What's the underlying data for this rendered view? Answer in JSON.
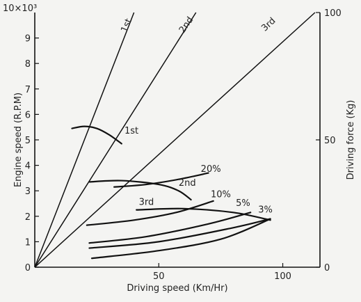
{
  "chart_data": {
    "type": "line",
    "xlabel": "Driving speed (Km/Hr)",
    "ylabel": "Engine speed (R.P.M)",
    "ylabel_right": "Driving force (Kg)",
    "y_multiplier_label": "10×10³",
    "xlim": [
      0,
      115
    ],
    "ylim": [
      0,
      10
    ],
    "ylim_right": [
      0,
      100
    ],
    "x_ticks": [
      {
        "value": 50,
        "label": "50"
      },
      {
        "value": 100,
        "label": "100"
      }
    ],
    "y_ticks": [
      {
        "value": 0,
        "label": "0"
      },
      {
        "value": 1,
        "label": "1"
      },
      {
        "value": 2,
        "label": "2"
      },
      {
        "value": 3,
        "label": "3"
      },
      {
        "value": 4,
        "label": "4"
      },
      {
        "value": 5,
        "label": "5"
      },
      {
        "value": 6,
        "label": "6"
      },
      {
        "value": 7,
        "label": "7"
      },
      {
        "value": 8,
        "label": "8"
      },
      {
        "value": 9,
        "label": "9"
      }
    ],
    "y_right_ticks": [
      {
        "value": 0,
        "label": "0"
      },
      {
        "value": 50,
        "label": "50"
      },
      {
        "value": 100,
        "label": "100"
      }
    ],
    "engine_speed_lines": [
      {
        "name": "1st",
        "points": [
          [
            0,
            0
          ],
          [
            40,
            10
          ]
        ]
      },
      {
        "name": "2nd",
        "points": [
          [
            0,
            0
          ],
          [
            65,
            10
          ]
        ]
      },
      {
        "name": "3rd",
        "points": [
          [
            0,
            0
          ],
          [
            113,
            10
          ]
        ]
      }
    ],
    "driving_force_curves": [
      {
        "name": "1st",
        "axis": "right",
        "points": [
          [
            15,
            54.5
          ],
          [
            20,
            55.3
          ],
          [
            25,
            54.5
          ],
          [
            30,
            52
          ],
          [
            35,
            48.5
          ]
        ]
      },
      {
        "name": "2nd",
        "axis": "right",
        "points": [
          [
            22,
            33.5
          ],
          [
            35,
            34
          ],
          [
            50,
            32.5
          ],
          [
            58,
            30
          ],
          [
            63,
            26.5
          ]
        ]
      },
      {
        "name": "3rd",
        "axis": "right",
        "points": [
          [
            41,
            22.5
          ],
          [
            60,
            23
          ],
          [
            80,
            21.5
          ],
          [
            95,
            18.5
          ]
        ]
      },
      {
        "name": "20%",
        "axis": "right",
        "points": [
          [
            32,
            31.5
          ],
          [
            45,
            32.5
          ],
          [
            58,
            34.5
          ],
          [
            70,
            37
          ]
        ]
      },
      {
        "name": "10%",
        "axis": "right",
        "points": [
          [
            21,
            16.5
          ],
          [
            40,
            18.5
          ],
          [
            57,
            21.5
          ],
          [
            72,
            26
          ]
        ]
      },
      {
        "name": "5%",
        "axis": "right",
        "points": [
          [
            22,
            9.5
          ],
          [
            45,
            12
          ],
          [
            70,
            17
          ],
          [
            87,
            21.5
          ]
        ]
      },
      {
        "name": "3%",
        "axis": "right",
        "points": [
          [
            22,
            7.5
          ],
          [
            50,
            10
          ],
          [
            80,
            15.5
          ],
          [
            95,
            19
          ]
        ]
      },
      {
        "name": "",
        "axis": "right",
        "points": [
          [
            23,
            3.5
          ],
          [
            50,
            6.5
          ],
          [
            75,
            11
          ],
          [
            94,
            18.5
          ]
        ]
      }
    ],
    "annotations": [
      {
        "text": "1st",
        "x": 38,
        "y": 9.45,
        "rotate": -67
      },
      {
        "text": "2nd",
        "x": 62,
        "y": 9.45,
        "rotate": -55
      },
      {
        "text": "3rd",
        "x": 95,
        "y": 9.45,
        "rotate": -43
      },
      {
        "text": "1st",
        "x": 39,
        "y": 5.25,
        "rotate": 0
      },
      {
        "text": "2nd",
        "x": 61.5,
        "y": 3.2,
        "rotate": 0
      },
      {
        "text": "3rd",
        "x": 45,
        "y": 2.45,
        "rotate": 0
      },
      {
        "text": "20%",
        "x": 71,
        "y": 3.75,
        "rotate": 0
      },
      {
        "text": "10%",
        "x": 75,
        "y": 2.75,
        "rotate": 0
      },
      {
        "text": "5%",
        "x": 84,
        "y": 2.4,
        "rotate": 0
      },
      {
        "text": "3%",
        "x": 93,
        "y": 2.15,
        "rotate": 0
      }
    ]
  }
}
